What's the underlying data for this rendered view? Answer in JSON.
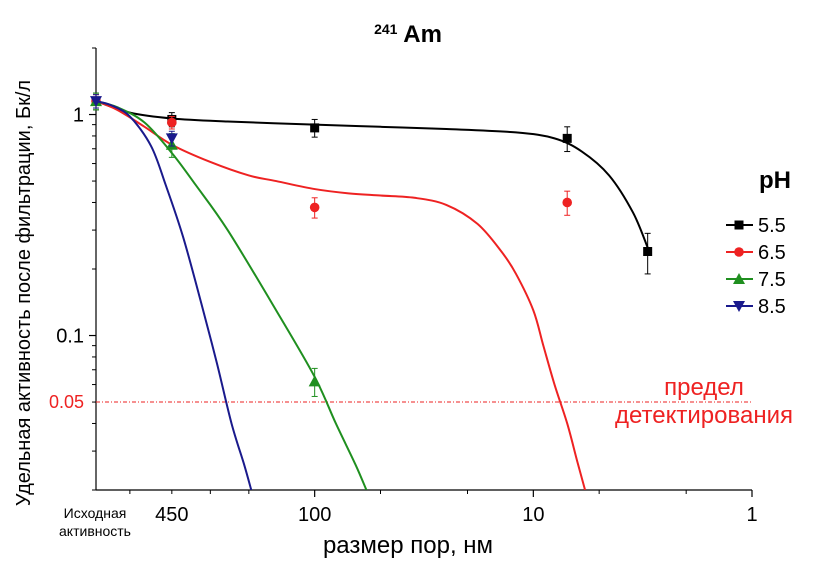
{
  "chart_data": {
    "type": "scatter",
    "title": {
      "superscript": "241",
      "main": "Am"
    },
    "xlabel": "размер пор, нм",
    "ylabel": "Удельная активность после фильтрации, Бк/л",
    "x_scale": "log-reversed",
    "y_scale": "log",
    "xlim": [
      1000,
      1
    ],
    "ylim": [
      0.02,
      2
    ],
    "x_ticks": [
      {
        "value": 100,
        "label": "100"
      },
      {
        "value": 10,
        "label": "10"
      },
      {
        "value": 1,
        "label": "1"
      }
    ],
    "x_category_labels": [
      {
        "label": "Исходная активность",
        "lines": [
          "Исходная",
          "активность"
        ],
        "x": 1000
      },
      {
        "label": "450",
        "x": 450
      }
    ],
    "y_ticks": [
      {
        "value": 1,
        "label": "1"
      },
      {
        "value": 0.1,
        "label": "0.1"
      }
    ],
    "reference_line": {
      "value": 0.05,
      "label": "0.05",
      "annotation_lines": [
        "предел",
        "детектирования"
      ],
      "color": "#ee2222"
    },
    "legend_title": "pH",
    "legend_position": "right",
    "grid": false,
    "series": [
      {
        "name": "5.5",
        "color": "#000000",
        "marker": "square",
        "points": [
          {
            "x": 1000,
            "y": 1.15,
            "err": 0.1
          },
          {
            "x": 450,
            "y": 0.95,
            "err": 0.07
          },
          {
            "x": 100,
            "y": 0.87,
            "err": 0.08
          },
          {
            "x": 7,
            "y": 0.78,
            "err": 0.1
          },
          {
            "x": 3,
            "y": 0.24,
            "err": 0.05
          }
        ],
        "curve": [
          [
            1000,
            1.15
          ],
          [
            700,
            1.02
          ],
          [
            450,
            0.96
          ],
          [
            250,
            0.93
          ],
          [
            100,
            0.9
          ],
          [
            50,
            0.88
          ],
          [
            25,
            0.86
          ],
          [
            12,
            0.83
          ],
          [
            8,
            0.78
          ],
          [
            6,
            0.68
          ],
          [
            4.5,
            0.53
          ],
          [
            3.5,
            0.36
          ],
          [
            3,
            0.25
          ]
        ]
      },
      {
        "name": "6.5",
        "color": "#ee2222",
        "marker": "circle",
        "points": [
          {
            "x": 1000,
            "y": 1.15,
            "err": 0.08
          },
          {
            "x": 450,
            "y": 0.92,
            "err": 0.06
          },
          {
            "x": 100,
            "y": 0.38,
            "err": 0.04
          },
          {
            "x": 7,
            "y": 0.4,
            "err": 0.05
          }
        ],
        "curve": [
          [
            1000,
            1.15
          ],
          [
            800,
            1.05
          ],
          [
            600,
            0.88
          ],
          [
            450,
            0.73
          ],
          [
            300,
            0.61
          ],
          [
            200,
            0.53
          ],
          [
            150,
            0.5
          ],
          [
            100,
            0.46
          ],
          [
            70,
            0.44
          ],
          [
            50,
            0.43
          ],
          [
            35,
            0.42
          ],
          [
            25,
            0.39
          ],
          [
            18,
            0.32
          ],
          [
            14,
            0.24
          ],
          [
            12,
            0.19
          ],
          [
            10,
            0.13
          ],
          [
            9,
            0.09
          ],
          [
            8,
            0.06
          ],
          [
            7,
            0.04
          ],
          [
            6.3,
            0.027
          ],
          [
            5.8,
            0.02
          ]
        ]
      },
      {
        "name": "7.5",
        "color": "#1f8f1f",
        "marker": "triangle-up",
        "points": [
          {
            "x": 1000,
            "y": 1.15,
            "err": 0.1
          },
          {
            "x": 450,
            "y": 0.73,
            "err": 0.09
          },
          {
            "x": 100,
            "y": 0.062,
            "err": 0.009
          }
        ],
        "curve": [
          [
            1000,
            1.15
          ],
          [
            800,
            1.08
          ],
          [
            600,
            0.92
          ],
          [
            450,
            0.67
          ],
          [
            350,
            0.48
          ],
          [
            250,
            0.3
          ],
          [
            150,
            0.13
          ],
          [
            100,
            0.065
          ],
          [
            80,
            0.04
          ],
          [
            65,
            0.026
          ],
          [
            58,
            0.02
          ]
        ]
      },
      {
        "name": "8.5",
        "color": "#1a1a8c",
        "marker": "triangle-down",
        "points": [
          {
            "x": 1000,
            "y": 1.15,
            "err": 0.08
          },
          {
            "x": 450,
            "y": 0.78,
            "err": 0.06
          }
        ],
        "curve": [
          [
            1000,
            1.15
          ],
          [
            850,
            1.1
          ],
          [
            700,
            0.98
          ],
          [
            560,
            0.72
          ],
          [
            480,
            0.48
          ],
          [
            400,
            0.28
          ],
          [
            330,
            0.14
          ],
          [
            280,
            0.075
          ],
          [
            240,
            0.04
          ],
          [
            210,
            0.026
          ],
          [
            195,
            0.02
          ]
        ]
      }
    ]
  }
}
